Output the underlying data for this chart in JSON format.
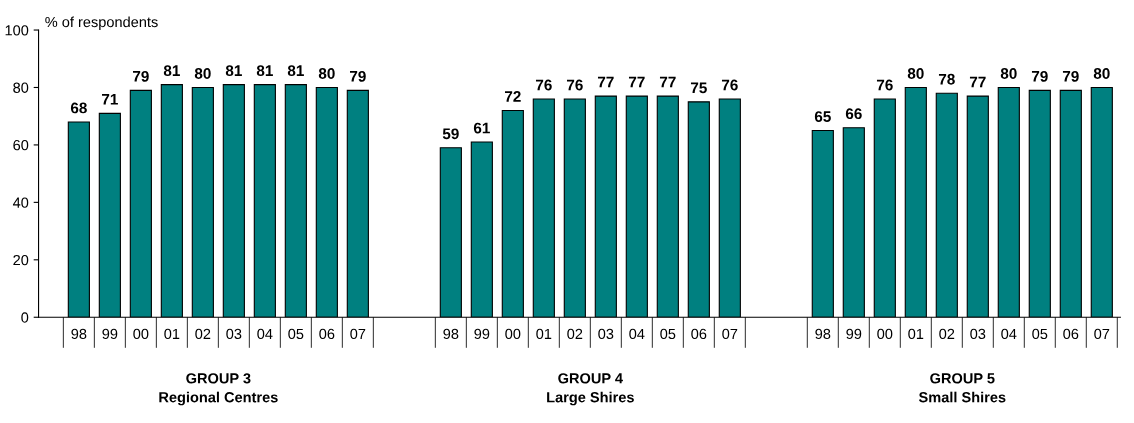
{
  "chart_data": {
    "type": "bar",
    "ylabel": "% of respondents",
    "categories": [
      "98",
      "99",
      "00",
      "01",
      "02",
      "03",
      "04",
      "05",
      "06",
      "07",
      null,
      null,
      "98",
      "99",
      "00",
      "01",
      "02",
      "03",
      "04",
      "05",
      "06",
      "07",
      null,
      null,
      "98",
      "99",
      "00",
      "01",
      "02",
      "03",
      "04",
      "05",
      "06",
      "07"
    ],
    "values": [
      68,
      71,
      79,
      81,
      80,
      81,
      81,
      81,
      80,
      79,
      null,
      null,
      59,
      61,
      72,
      76,
      76,
      77,
      77,
      77,
      75,
      76,
      null,
      null,
      65,
      66,
      76,
      80,
      78,
      77,
      80,
      79,
      79,
      80
    ],
    "color": "#008080",
    "ylim": [
      0,
      100
    ],
    "yticks": [
      0,
      20,
      40,
      60,
      80,
      100
    ],
    "grid": false,
    "data_labels": true,
    "annotations": [
      "GROUP 3\nRegional Centres",
      "GROUP 4\nLarge Shires",
      "GROUP 5\nSmall Shires"
    ]
  }
}
